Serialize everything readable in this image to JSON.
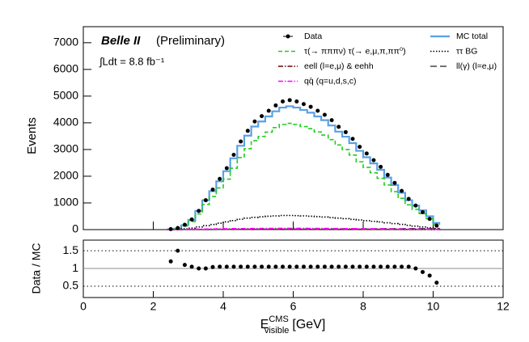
{
  "chart_data": {
    "type": "histogram",
    "annotations": {
      "experiment": "Belle II",
      "status": "(Preliminary)",
      "luminosity": "∫Ldt = 8.8 fb⁻¹"
    },
    "xlabel": {
      "main": "E",
      "sup": "CMS",
      "sub": "visible",
      "unit": "[GeV]"
    },
    "ylabel": "Events",
    "bins": [
      2.4,
      2.6,
      2.8,
      3.0,
      3.2,
      3.4,
      3.6,
      3.8,
      4.0,
      4.2,
      4.4,
      4.6,
      4.8,
      5.0,
      5.2,
      5.4,
      5.6,
      5.8,
      6.0,
      6.2,
      6.4,
      6.6,
      6.8,
      7.0,
      7.2,
      7.4,
      7.6,
      7.8,
      8.0,
      8.2,
      8.4,
      8.6,
      8.8,
      9.0,
      9.2,
      9.4,
      9.6,
      9.8,
      10.0,
      10.2
    ],
    "xlim": [
      0,
      12
    ],
    "xticks": [
      0,
      2,
      4,
      6,
      8,
      10,
      12
    ],
    "ylim": [
      0,
      7600
    ],
    "yticks": [
      0,
      1000,
      2000,
      3000,
      4000,
      5000,
      6000,
      7000
    ],
    "series": [
      {
        "name": "Data",
        "color": "#000000",
        "style": "points",
        "values": [
          20,
          60,
          180,
          380,
          700,
          1100,
          1500,
          1900,
          2300,
          2800,
          3300,
          3700,
          4050,
          4250,
          4450,
          4650,
          4800,
          4850,
          4800,
          4700,
          4600,
          4450,
          4300,
          4100,
          3850,
          3650,
          3400,
          3100,
          2850,
          2600,
          2350,
          2050,
          1750,
          1450,
          1150,
          900,
          650,
          400,
          150
        ]
      },
      {
        "name": "MC total",
        "color": "#5aa0e6",
        "style": "solid",
        "values": [
          17,
          40,
          165,
          360,
          700,
          1100,
          1440,
          1810,
          2190,
          2670,
          3140,
          3520,
          3860,
          4050,
          4240,
          4430,
          4570,
          4620,
          4570,
          4480,
          4380,
          4240,
          4100,
          3900,
          3670,
          3480,
          3240,
          2950,
          2710,
          2480,
          2240,
          1950,
          1670,
          1380,
          1100,
          900,
          720,
          500,
          250
        ]
      },
      {
        "name": "τ(→ πππν) τ(→ e,μ,π,ππ⁰)",
        "color": "#22cc22",
        "style": "dashed",
        "values": [
          10,
          30,
          130,
          300,
          590,
          940,
          1240,
          1560,
          1890,
          2300,
          2700,
          3030,
          3330,
          3490,
          3650,
          3820,
          3940,
          3980,
          3940,
          3860,
          3780,
          3660,
          3540,
          3370,
          3170,
          3000,
          2790,
          2540,
          2330,
          2130,
          1920,
          1670,
          1420,
          1170,
          930,
          760,
          600,
          410,
          200
        ]
      },
      {
        "name": "ττ BG",
        "color": "#000000",
        "style": "dotted",
        "values": [
          5,
          10,
          30,
          55,
          100,
          150,
          190,
          240,
          290,
          340,
          390,
          430,
          460,
          480,
          500,
          515,
          530,
          530,
          525,
          515,
          500,
          485,
          470,
          450,
          430,
          410,
          385,
          360,
          335,
          310,
          285,
          255,
          225,
          195,
          160,
          130,
          100,
          70,
          40
        ]
      },
      {
        "name": "eell (l=e,μ) & eehh",
        "color": "#660000",
        "style": "dashdot",
        "values": [
          2,
          3,
          4,
          5,
          6,
          7,
          8,
          9,
          10,
          10,
          11,
          11,
          12,
          12,
          12,
          12,
          12,
          12,
          12,
          12,
          12,
          12,
          12,
          11,
          11,
          11,
          10,
          10,
          10,
          9,
          9,
          8,
          8,
          7,
          7,
          6,
          5,
          4,
          3
        ]
      },
      {
        "name": "ll(γ) (l=e,μ)",
        "color": "#444444",
        "style": "longdash",
        "values": [
          1,
          2,
          3,
          4,
          5,
          6,
          7,
          8,
          9,
          10,
          11,
          12,
          13,
          14,
          15,
          16,
          17,
          18,
          19,
          20,
          21,
          22,
          23,
          24,
          25,
          26,
          27,
          28,
          29,
          30,
          31,
          32,
          33,
          34,
          35,
          36,
          37,
          38,
          39
        ]
      },
      {
        "name": "qq̄ (q=u,d,s,c)",
        "color": "#ff00ff",
        "style": "dashdot",
        "values": [
          3,
          5,
          8,
          12,
          16,
          20,
          24,
          28,
          32,
          35,
          38,
          40,
          42,
          44,
          45,
          46,
          47,
          47,
          47,
          46,
          45,
          44,
          43,
          41,
          39,
          37,
          35,
          33,
          31,
          29,
          27,
          25,
          23,
          21,
          19,
          17,
          15,
          13,
          10
        ]
      }
    ],
    "ratio": {
      "ylabel": "Data / MC",
      "ylim": [
        0.18,
        1.8
      ],
      "yticks": [
        0.5,
        1,
        1.5
      ],
      "reference": 1,
      "values": [
        1.2,
        1.5,
        1.1,
        1.05,
        1.0,
        1.0,
        1.04,
        1.05,
        1.05,
        1.05,
        1.05,
        1.05,
        1.05,
        1.05,
        1.05,
        1.05,
        1.05,
        1.05,
        1.05,
        1.05,
        1.05,
        1.05,
        1.05,
        1.05,
        1.05,
        1.05,
        1.05,
        1.05,
        1.05,
        1.05,
        1.05,
        1.05,
        1.05,
        1.05,
        1.05,
        1.0,
        0.9,
        0.8,
        0.6
      ]
    }
  }
}
